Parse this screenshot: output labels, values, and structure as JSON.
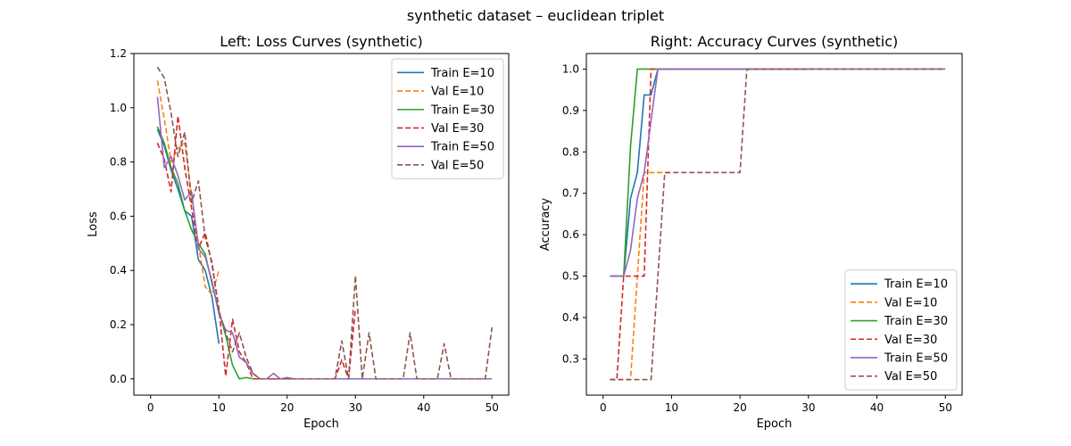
{
  "suptitle": "synthetic dataset – euclidean triplet",
  "chart_data": [
    {
      "type": "line",
      "title": "Left: Loss Curves (synthetic)",
      "xlabel": "Epoch",
      "ylabel": "Loss",
      "xlim": [
        -2.45,
        52.45
      ],
      "ylim": [
        -0.06,
        1.2
      ],
      "xticks": [
        0,
        10,
        20,
        30,
        40,
        50
      ],
      "yticks": [
        0.0,
        0.2,
        0.4,
        0.6,
        0.8,
        1.0,
        1.2
      ],
      "ytick_labels": [
        "0.0",
        "0.2",
        "0.4",
        "0.6",
        "0.8",
        "1.0",
        "1.2"
      ],
      "legend_position": "upper right",
      "grid": false,
      "series": [
        {
          "name": "Train E=10",
          "color": "#1f77b4",
          "dash": "solid",
          "x": [
            1,
            2,
            3,
            4,
            5,
            6,
            7,
            8,
            9,
            10
          ],
          "y": [
            0.92,
            0.86,
            0.77,
            0.7,
            0.62,
            0.6,
            0.44,
            0.4,
            0.3,
            0.13
          ]
        },
        {
          "name": "Val E=10",
          "color": "#ff7f0e",
          "dash": "dashed",
          "x": [
            1,
            2,
            3,
            4,
            5,
            6,
            7,
            8,
            9,
            10
          ],
          "y": [
            1.1,
            0.96,
            0.8,
            0.85,
            0.87,
            0.68,
            0.5,
            0.34,
            0.31,
            0.4
          ]
        },
        {
          "name": "Train E=30",
          "color": "#2ca02c",
          "dash": "solid",
          "x": [
            1,
            2,
            3,
            4,
            5,
            6,
            7,
            8,
            9,
            10,
            11,
            12,
            13,
            14,
            15,
            16,
            17,
            18,
            19,
            20,
            21,
            22,
            23,
            24,
            25,
            26,
            27,
            28,
            29,
            30
          ],
          "y": [
            0.93,
            0.87,
            0.78,
            0.72,
            0.62,
            0.55,
            0.5,
            0.46,
            0.35,
            0.25,
            0.16,
            0.05,
            0.0,
            0.005,
            0.0,
            0.0,
            0.0,
            0.0,
            0.0,
            0.0,
            0.0,
            0.0,
            0.0,
            0.0,
            0.0,
            0.0,
            0.0,
            0.0,
            0.0,
            0.0
          ]
        },
        {
          "name": "Val E=30",
          "color": "#d62728",
          "dash": "dashed",
          "x": [
            1,
            2,
            3,
            4,
            5,
            6,
            7,
            8,
            9,
            10,
            11,
            12,
            13,
            14,
            15,
            16,
            17,
            18,
            19,
            20,
            21,
            22,
            23,
            24,
            25,
            26,
            27,
            28,
            29,
            30
          ],
          "y": [
            0.87,
            0.81,
            0.69,
            0.97,
            0.78,
            0.63,
            0.48,
            0.54,
            0.42,
            0.26,
            0.01,
            0.22,
            0.1,
            0.06,
            0.0,
            0.0,
            0.0,
            0.0,
            0.0,
            0.0,
            0.0,
            0.0,
            0.0,
            0.0,
            0.0,
            0.0,
            0.0,
            0.07,
            0.0,
            0.26
          ]
        },
        {
          "name": "Train E=50",
          "color": "#9467bd",
          "dash": "solid",
          "x": [
            1,
            2,
            3,
            4,
            5,
            6,
            7,
            8,
            9,
            10,
            11,
            12,
            13,
            14,
            15,
            16,
            17,
            18,
            19,
            20,
            21,
            22,
            23,
            24,
            25,
            26,
            27,
            28,
            29,
            30,
            31,
            32,
            33,
            34,
            35,
            36,
            37,
            38,
            39,
            40,
            41,
            42,
            43,
            44,
            45,
            46,
            47,
            48,
            49,
            50
          ],
          "y": [
            1.04,
            0.78,
            0.82,
            0.75,
            0.66,
            0.69,
            0.48,
            0.45,
            0.36,
            0.24,
            0.18,
            0.17,
            0.08,
            0.06,
            0.02,
            0.0,
            0.0,
            0.02,
            0.0,
            0.005,
            0.0,
            0.0,
            0.0,
            0.0,
            0.0,
            0.0,
            0.0,
            0.0,
            0.0,
            0.0,
            0.0,
            0.0,
            0.0,
            0.0,
            0.0,
            0.0,
            0.0,
            0.0,
            0.0,
            0.0,
            0.0,
            0.0,
            0.0,
            0.0,
            0.0,
            0.0,
            0.0,
            0.0,
            0.0,
            0.0
          ]
        },
        {
          "name": "Val E=50",
          "color": "#8c564b",
          "dash": "dashed",
          "x": [
            1,
            2,
            3,
            4,
            5,
            6,
            7,
            8,
            9,
            10,
            11,
            12,
            13,
            14,
            15,
            16,
            17,
            18,
            19,
            20,
            21,
            22,
            23,
            24,
            25,
            26,
            27,
            28,
            29,
            30,
            31,
            32,
            33,
            34,
            35,
            36,
            37,
            38,
            39,
            40,
            41,
            42,
            43,
            44,
            45,
            46,
            47,
            48,
            49,
            50
          ],
          "y": [
            1.15,
            1.11,
            0.98,
            0.82,
            0.91,
            0.65,
            0.73,
            0.52,
            0.43,
            0.25,
            0.17,
            0.1,
            0.17,
            0.08,
            0.02,
            0.0,
            0.0,
            0.0,
            0.0,
            0.0,
            0.0,
            0.0,
            0.0,
            0.0,
            0.0,
            0.0,
            0.0,
            0.14,
            0.0,
            0.38,
            0.0,
            0.17,
            0.0,
            0.0,
            0.0,
            0.0,
            0.0,
            0.17,
            0.0,
            0.0,
            0.0,
            0.0,
            0.13,
            0.0,
            0.0,
            0.0,
            0.0,
            0.0,
            0.0,
            0.19
          ]
        }
      ]
    },
    {
      "type": "line",
      "title": "Right: Accuracy Curves (synthetic)",
      "xlabel": "Epoch",
      "ylabel": "Accuracy",
      "xlim": [
        -2.45,
        52.45
      ],
      "ylim": [
        0.2125,
        1.0375
      ],
      "xticks": [
        0,
        10,
        20,
        30,
        40,
        50
      ],
      "yticks": [
        0.3,
        0.4,
        0.5,
        0.6,
        0.7,
        0.8,
        0.9,
        1.0
      ],
      "ytick_labels": [
        "0.3",
        "0.4",
        "0.5",
        "0.6",
        "0.7",
        "0.8",
        "0.9",
        "1.0"
      ],
      "legend_position": "lower right",
      "grid": false,
      "series": [
        {
          "name": "Train E=10",
          "color": "#1f77b4",
          "dash": "solid",
          "x": [
            1,
            2,
            3,
            4,
            5,
            6,
            7,
            8,
            9,
            10
          ],
          "y": [
            0.5,
            0.5,
            0.5,
            0.6875,
            0.75,
            0.9375,
            0.9375,
            1.0,
            1.0,
            1.0
          ]
        },
        {
          "name": "Val E=10",
          "color": "#ff7f0e",
          "dash": "dashed",
          "x": [
            1,
            2,
            3,
            4,
            5,
            6,
            7,
            8,
            9,
            10
          ],
          "y": [
            0.25,
            0.25,
            0.25,
            0.25,
            0.5,
            0.75,
            0.75,
            0.75,
            0.75,
            0.75
          ]
        },
        {
          "name": "Train E=30",
          "color": "#2ca02c",
          "dash": "solid",
          "x": [
            1,
            2,
            3,
            4,
            5,
            6,
            7,
            8,
            9,
            10,
            11,
            12,
            13,
            14,
            15,
            16,
            17,
            18,
            19,
            20,
            21,
            22,
            23,
            24,
            25,
            26,
            27,
            28,
            29,
            30
          ],
          "y": [
            0.5,
            0.5,
            0.5,
            0.8125,
            1.0,
            1.0,
            1.0,
            1.0,
            1.0,
            1.0,
            1.0,
            1.0,
            1.0,
            1.0,
            1.0,
            1.0,
            1.0,
            1.0,
            1.0,
            1.0,
            1.0,
            1.0,
            1.0,
            1.0,
            1.0,
            1.0,
            1.0,
            1.0,
            1.0,
            1.0
          ]
        },
        {
          "name": "Val E=30",
          "color": "#d62728",
          "dash": "dashed",
          "x": [
            1,
            2,
            3,
            4,
            5,
            6,
            7,
            8,
            9,
            10,
            11,
            12,
            13,
            14,
            15,
            16,
            17,
            18,
            19,
            20,
            21,
            22,
            23,
            24,
            25,
            26,
            27,
            28,
            29,
            30
          ],
          "y": [
            0.25,
            0.25,
            0.5,
            0.5,
            0.5,
            0.5,
            1.0,
            1.0,
            1.0,
            1.0,
            1.0,
            1.0,
            1.0,
            1.0,
            1.0,
            1.0,
            1.0,
            1.0,
            1.0,
            1.0,
            1.0,
            1.0,
            1.0,
            1.0,
            1.0,
            1.0,
            1.0,
            1.0,
            1.0,
            1.0
          ]
        },
        {
          "name": "Train E=50",
          "color": "#9467bd",
          "dash": "solid",
          "x": [
            1,
            2,
            3,
            4,
            5,
            6,
            7,
            8,
            9,
            10,
            11,
            12,
            13,
            14,
            15,
            16,
            17,
            18,
            19,
            20,
            21,
            22,
            23,
            24,
            25,
            26,
            27,
            28,
            29,
            30,
            31,
            32,
            33,
            34,
            35,
            36,
            37,
            38,
            39,
            40,
            41,
            42,
            43,
            44,
            45,
            46,
            47,
            48,
            49,
            50
          ],
          "y": [
            0.5,
            0.5,
            0.5,
            0.5625,
            0.6875,
            0.75,
            0.875,
            1.0,
            1.0,
            1.0,
            1.0,
            1.0,
            1.0,
            1.0,
            1.0,
            1.0,
            1.0,
            1.0,
            1.0,
            1.0,
            1.0,
            1.0,
            1.0,
            1.0,
            1.0,
            1.0,
            1.0,
            1.0,
            1.0,
            1.0,
            1.0,
            1.0,
            1.0,
            1.0,
            1.0,
            1.0,
            1.0,
            1.0,
            1.0,
            1.0,
            1.0,
            1.0,
            1.0,
            1.0,
            1.0,
            1.0,
            1.0,
            1.0,
            1.0,
            1.0
          ]
        },
        {
          "name": "Val E=50",
          "color": "#8c564b",
          "dash": "dashed",
          "x": [
            1,
            2,
            3,
            4,
            5,
            6,
            7,
            8,
            9,
            10,
            11,
            12,
            13,
            14,
            15,
            16,
            17,
            18,
            19,
            20,
            21,
            22,
            23,
            24,
            25,
            26,
            27,
            28,
            29,
            30,
            31,
            32,
            33,
            34,
            35,
            36,
            37,
            38,
            39,
            40,
            41,
            42,
            43,
            44,
            45,
            46,
            47,
            48,
            49,
            50
          ],
          "y": [
            0.25,
            0.25,
            0.25,
            0.25,
            0.25,
            0.25,
            0.25,
            0.5,
            0.75,
            0.75,
            0.75,
            0.75,
            0.75,
            0.75,
            0.75,
            0.75,
            0.75,
            0.75,
            0.75,
            0.75,
            1.0,
            1.0,
            1.0,
            1.0,
            1.0,
            1.0,
            1.0,
            1.0,
            1.0,
            1.0,
            1.0,
            1.0,
            1.0,
            1.0,
            1.0,
            1.0,
            1.0,
            1.0,
            1.0,
            1.0,
            1.0,
            1.0,
            1.0,
            1.0,
            1.0,
            1.0,
            1.0,
            1.0,
            1.0,
            1.0
          ]
        }
      ]
    }
  ]
}
